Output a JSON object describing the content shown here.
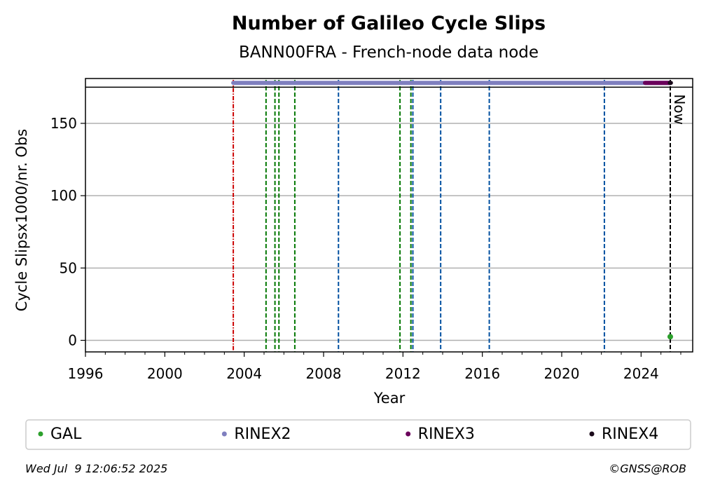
{
  "chart_data": {
    "type": "scatter",
    "title": "Number of Galileo Cycle Slips",
    "subtitle": "BANN00FRA - French-node data node",
    "xlabel": "Year",
    "ylabel": "Cycle Slipsx1000/nr. Obs",
    "xlim": [
      1996,
      2026.6
    ],
    "ylim": [
      -8,
      181
    ],
    "xticks": [
      1996,
      2000,
      2004,
      2008,
      2012,
      2016,
      2020,
      2024
    ],
    "yticks": [
      0,
      50,
      100,
      150
    ],
    "grid": "horizontal",
    "legend_position": "bottom",
    "series": [
      {
        "name": "GAL",
        "color": "#2ca02c",
        "points": [
          [
            2025.47,
            2.5
          ]
        ]
      },
      {
        "name": "RINEX2",
        "color": "#7f7fbf",
        "segment": {
          "x": [
            2003.45,
            2025.47
          ],
          "y": 178
        }
      },
      {
        "name": "RINEX3",
        "color": "#6b005b",
        "segment": {
          "x": [
            2024.2,
            2025.47
          ],
          "y": 178
        }
      },
      {
        "name": "RINEX4",
        "color": "#1a0a1a",
        "segment": {
          "x": [
            2025.45,
            2025.5
          ],
          "y": 178
        }
      }
    ],
    "event_lines": [
      {
        "x": 2003.45,
        "color": "#cc0000",
        "style": "dashdot"
      },
      {
        "x": 2005.1,
        "color": "#007700",
        "style": "dashed"
      },
      {
        "x": 2005.55,
        "color": "#007700",
        "style": "dashed"
      },
      {
        "x": 2005.75,
        "color": "#007700",
        "style": "dashed"
      },
      {
        "x": 2006.55,
        "color": "#007700",
        "style": "dashed"
      },
      {
        "x": 2008.75,
        "color": "#0050a0",
        "style": "dashed"
      },
      {
        "x": 2011.85,
        "color": "#007700",
        "style": "dashed"
      },
      {
        "x": 2012.4,
        "color": "#007700",
        "style": "dashed"
      },
      {
        "x": 2012.5,
        "color": "#0050a0",
        "style": "dashed"
      },
      {
        "x": 2013.9,
        "color": "#0050a0",
        "style": "dashed"
      },
      {
        "x": 2016.35,
        "color": "#0050a0",
        "style": "dashed"
      },
      {
        "x": 2022.15,
        "color": "#0050a0",
        "style": "dashed"
      },
      {
        "x": 2025.47,
        "color": "#000000",
        "style": "dashed",
        "label": "Now"
      }
    ],
    "header_band_y": 175
  },
  "footer": {
    "timestamp": "Wed Jul  9 12:06:52 2025",
    "copyright": "©GNSS@ROB"
  }
}
